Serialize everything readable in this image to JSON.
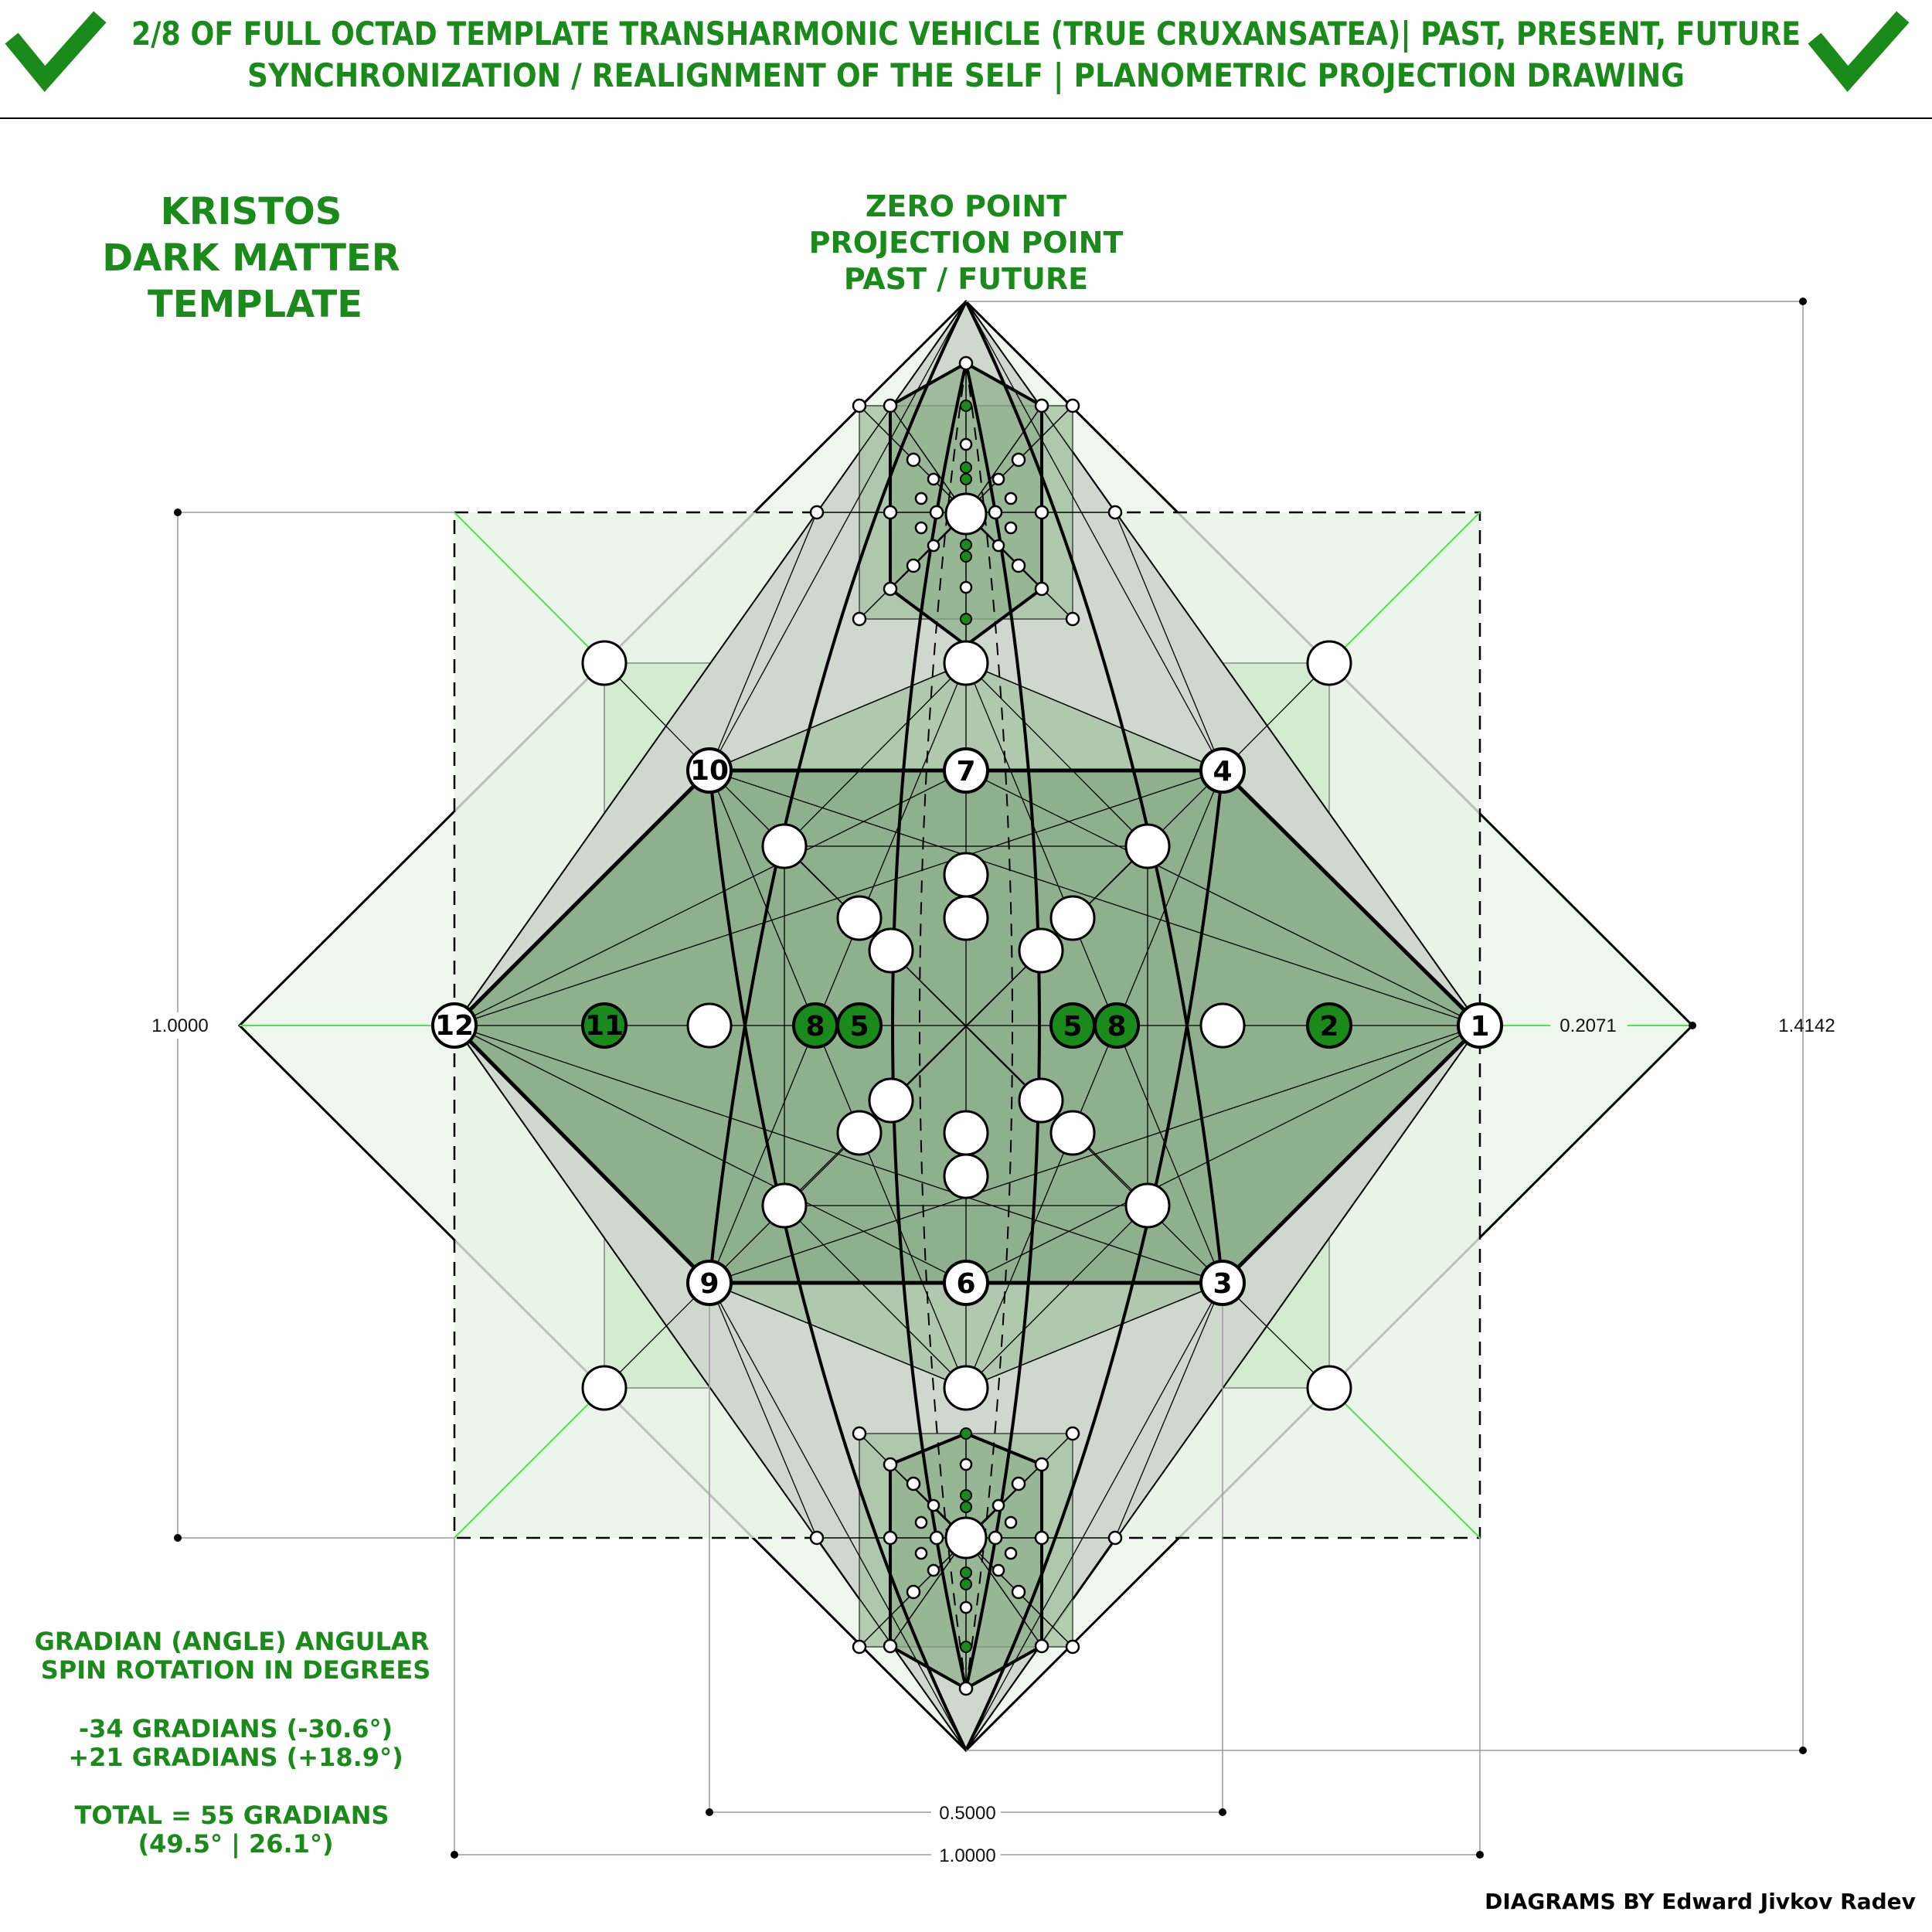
{
  "header": {
    "line1": "2/8 OF FULL OCTAD TEMPLATE TRANSHARMONIC VEHICLE (TRUE CRUXANSATEA)| PAST, PRESENT, FUTURE",
    "line2": "SYNCHRONIZATION / REALIGNMENT OF THE SELF | PLANOMETRIC PROJECTION DRAWING",
    "check_icon": "check-mark-icon",
    "accent_color": "#1a8a1a"
  },
  "left_title": {
    "lines": [
      "KRISTOS",
      "DARK MATTER",
      "TEMPLATE"
    ]
  },
  "zero_point": {
    "lines": [
      "ZERO POINT",
      "PROJECTION POINT",
      "PAST / FUTURE"
    ]
  },
  "dimensions": {
    "left_height": "1.0000",
    "right_offset": "0.2071",
    "right_height": "1.4142",
    "bottom_inner": "0.5000",
    "bottom_outer": "1.0000"
  },
  "gradian_note": {
    "lines": [
      "GRADIAN (ANGLE) ANGULAR",
      "SPIN ROTATION IN DEGREES",
      "",
      "-34 GRADIANS (-30.6°)",
      "+21 GRADIANS (+18.9°)",
      "",
      "TOTAL = 55 GRADIANS",
      "(49.5° | 26.1°)"
    ]
  },
  "credit": "DIAGRAMS BY Edward Jivkov Radev",
  "nodes": {
    "n1": "1",
    "n2": "2",
    "n3": "3",
    "n4": "4",
    "n5a": "5",
    "n5b": "5",
    "n6": "6",
    "n7": "7",
    "n8a": "8",
    "n8b": "8",
    "n9": "9",
    "n10": "10",
    "n11": "11",
    "n12": "12"
  },
  "colors": {
    "fill_light": "#eef7ec",
    "fill_pale": "#d3ecd0",
    "fill_mid": "#b0c9ae",
    "fill_dark": "#8fb08c",
    "grey_fill": "#cfd8cc",
    "node_green": "#1a8a1a",
    "line": "#000000",
    "thin_green": "#55dd55"
  }
}
